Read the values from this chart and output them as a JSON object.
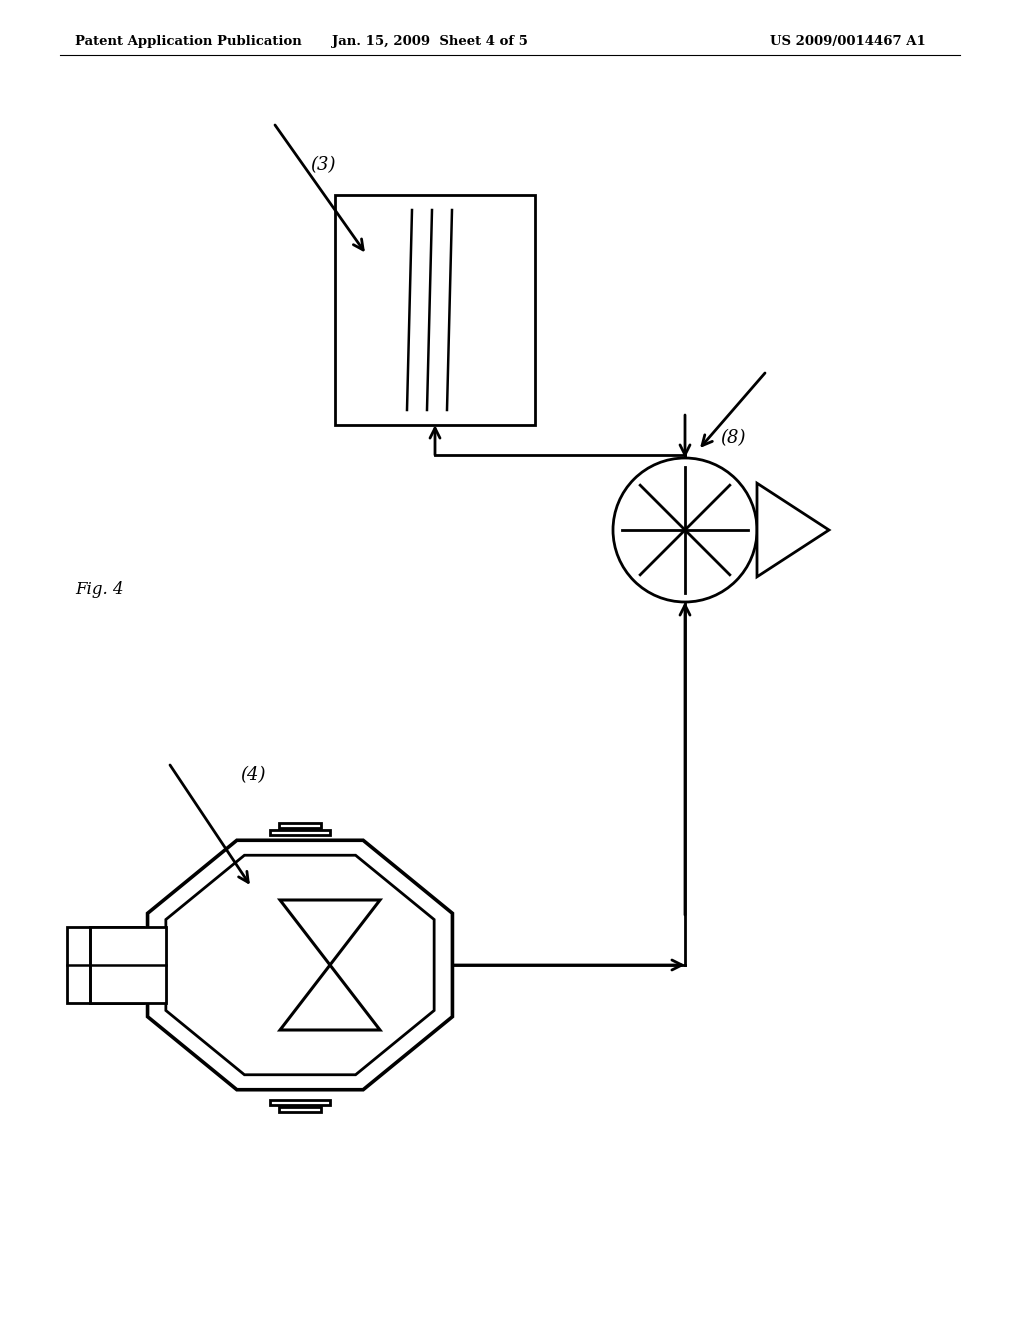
{
  "bg_color": "#ffffff",
  "lc": "#000000",
  "header_left": "Patent Application Publication",
  "header_mid": "Jan. 15, 2009  Sheet 4 of 5",
  "header_right": "US 2009/0014467 A1",
  "fig_label": "Fig. 4",
  "label_3": "(3)",
  "label_4": "(4)",
  "label_8": "(8)",
  "lw": 2.0
}
